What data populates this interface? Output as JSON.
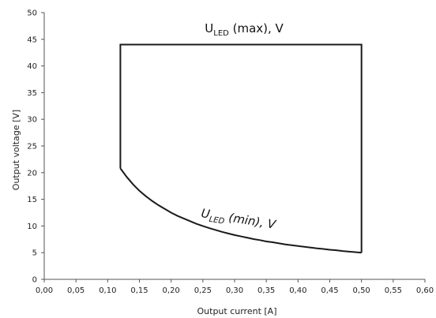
{
  "chart_data": {
    "type": "line",
    "title": "",
    "xlabel": "Output current [A]",
    "ylabel": "Output voltage [V]",
    "xlim": [
      0,
      0.6
    ],
    "ylim": [
      0,
      50
    ],
    "x_ticks": [
      "0,00",
      "0,05",
      "0,10",
      "0,15",
      "0,20",
      "0,25",
      "0,30",
      "0,35",
      "0,40",
      "0,45",
      "0,50",
      "0,55",
      "0,60"
    ],
    "y_ticks": [
      "0",
      "5",
      "10",
      "15",
      "20",
      "25",
      "30",
      "35",
      "40",
      "45",
      "50"
    ],
    "grid": false,
    "legend": "none",
    "series": [
      {
        "color": "#1a1a1a",
        "x": [
          0.12,
          0.12,
          0.5,
          0.5
        ],
        "y": [
          20.8,
          44,
          44,
          5
        ]
      },
      {
        "color": "#1a1a1a",
        "x": [
          0.12,
          0.13,
          0.14,
          0.15,
          0.16,
          0.17,
          0.18,
          0.19,
          0.2,
          0.21,
          0.22,
          0.23,
          0.24,
          0.25,
          0.26,
          0.27,
          0.28,
          0.29,
          0.3,
          0.31,
          0.32,
          0.33,
          0.34,
          0.35,
          0.36,
          0.37,
          0.38,
          0.39,
          0.4,
          0.41,
          0.42,
          0.43,
          0.44,
          0.45,
          0.46,
          0.47,
          0.48,
          0.49,
          0.5
        ],
        "y": [
          20.8,
          19.2,
          17.8,
          16.6,
          15.6,
          14.7,
          13.9,
          13.2,
          12.5,
          11.9,
          11.4,
          10.9,
          10.4,
          10.0,
          9.6,
          9.25,
          8.9,
          8.6,
          8.3,
          8.05,
          7.8,
          7.55,
          7.35,
          7.1,
          6.95,
          6.75,
          6.55,
          6.4,
          6.25,
          6.1,
          5.95,
          5.8,
          5.7,
          5.55,
          5.45,
          5.3,
          5.2,
          5.1,
          5.0
        ]
      }
    ],
    "annotations": [
      {
        "main": "U",
        "sub": "LED",
        "rest": " (max), V",
        "x": 0.315,
        "y": 46.3,
        "rotate": 0,
        "italic": false
      },
      {
        "main": "U",
        "sub": "LED",
        "rest": " (min), V",
        "x": 0.305,
        "y": 10.6,
        "rotate": 9,
        "italic": true
      }
    ]
  }
}
